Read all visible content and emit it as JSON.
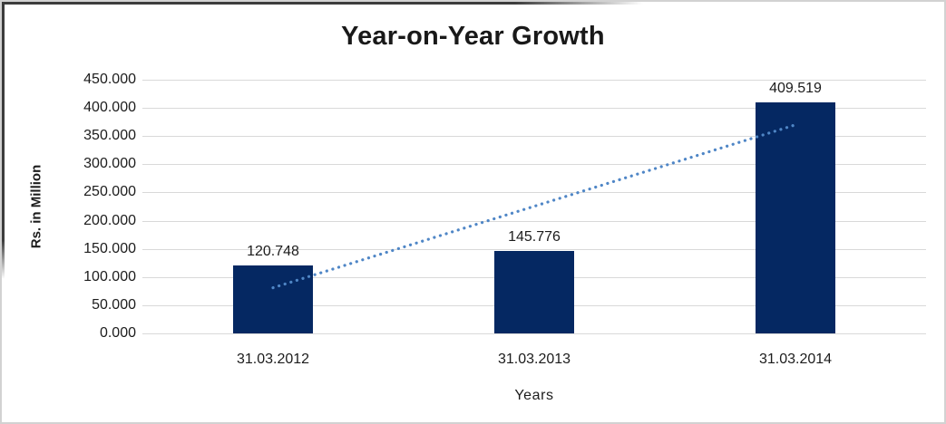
{
  "chart_data": {
    "type": "bar",
    "title": "Year-on-Year Growth",
    "categories": [
      "31.03.2012",
      "31.03.2013",
      "31.03.2014"
    ],
    "values": [
      120.748,
      145.776,
      409.519
    ],
    "data_labels": [
      "120.748",
      "145.776",
      "409.519"
    ],
    "xlabel": "Years",
    "ylabel": "Rs. in Million",
    "ylim": [
      0,
      450
    ],
    "ytick_interval": 50,
    "ytick_labels": [
      "450.000",
      "400.000",
      "350.000",
      "300.000",
      "250.000",
      "200.000",
      "150.000",
      "100.000",
      "50.000",
      "0.000"
    ],
    "grid": true,
    "legend": false,
    "bar_color": "#052862",
    "gridline_color": "#d9d9d9",
    "text_color": "#1c1c1c",
    "trendline": {
      "type": "linear",
      "style": "dotted",
      "color": "#4f86c6",
      "start": {
        "category_index": 0,
        "value": 81
      },
      "end": {
        "category_index": 2,
        "value": 370
      }
    }
  }
}
